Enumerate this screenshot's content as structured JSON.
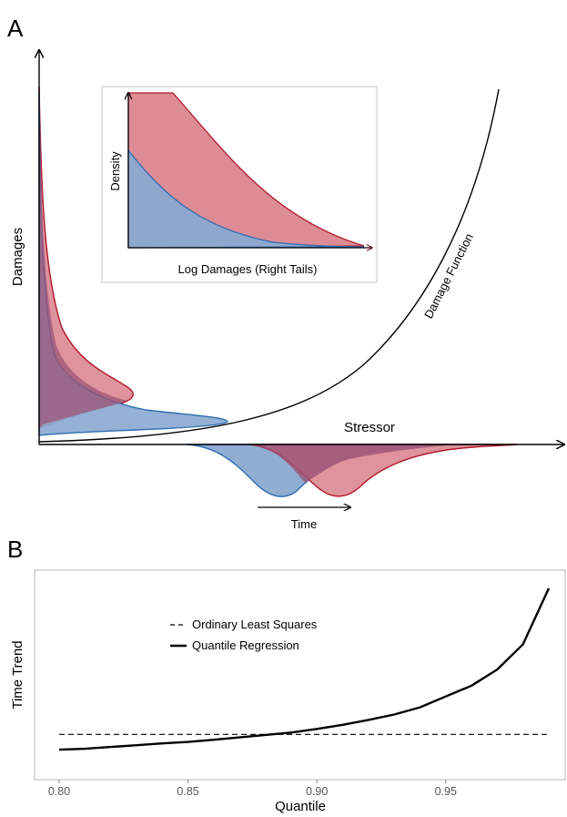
{
  "panels": {
    "a": {
      "letter": "A",
      "y_axis_label": "Damages",
      "x_axis_label": "Stressor",
      "curve_label": "Damage Function",
      "time_label": "Time",
      "inset": {
        "y_axis_label": "Density",
        "x_axis_label": "Log Damages (Right Tails)"
      },
      "colors": {
        "red": "#b0182a",
        "red_fill": "#d9808b",
        "blue": "#2f6db3",
        "blue_fill": "#8aa9d0",
        "overlap": "#9c5475"
      }
    },
    "b": {
      "letter": "B",
      "y_axis_label": "Time Trend",
      "x_axis_label": "Quantile",
      "legend": {
        "ols": "Ordinary Least Squares",
        "qr": "Quantile Regression"
      }
    }
  },
  "chart_data": [
    {
      "type": "line",
      "title": "",
      "xlabel": "Quantile",
      "ylabel": "Time Trend",
      "xlim": [
        0.79,
        1.0
      ],
      "ylim": [
        0,
        1
      ],
      "x_ticks": [
        "0.80",
        "0.85",
        "0.90",
        "0.95"
      ],
      "x_tick_values": [
        0.8,
        0.85,
        0.9,
        0.95
      ],
      "legend_position": "top-left",
      "grid": false,
      "series": [
        {
          "name": "Ordinary Least Squares",
          "style": "dashed",
          "x": [
            0.8,
            0.99
          ],
          "y": [
            0.14,
            0.14
          ]
        },
        {
          "name": "Quantile Regression",
          "style": "solid",
          "x": [
            0.8,
            0.81,
            0.82,
            0.83,
            0.84,
            0.85,
            0.86,
            0.87,
            0.88,
            0.89,
            0.9,
            0.91,
            0.92,
            0.93,
            0.94,
            0.95,
            0.96,
            0.97,
            0.98,
            0.99
          ],
          "y": [
            0.055,
            0.06,
            0.07,
            0.08,
            0.09,
            0.098,
            0.11,
            0.123,
            0.137,
            0.15,
            0.17,
            0.193,
            0.22,
            0.25,
            0.29,
            0.35,
            0.41,
            0.5,
            0.64,
            0.95
          ]
        }
      ]
    }
  ]
}
